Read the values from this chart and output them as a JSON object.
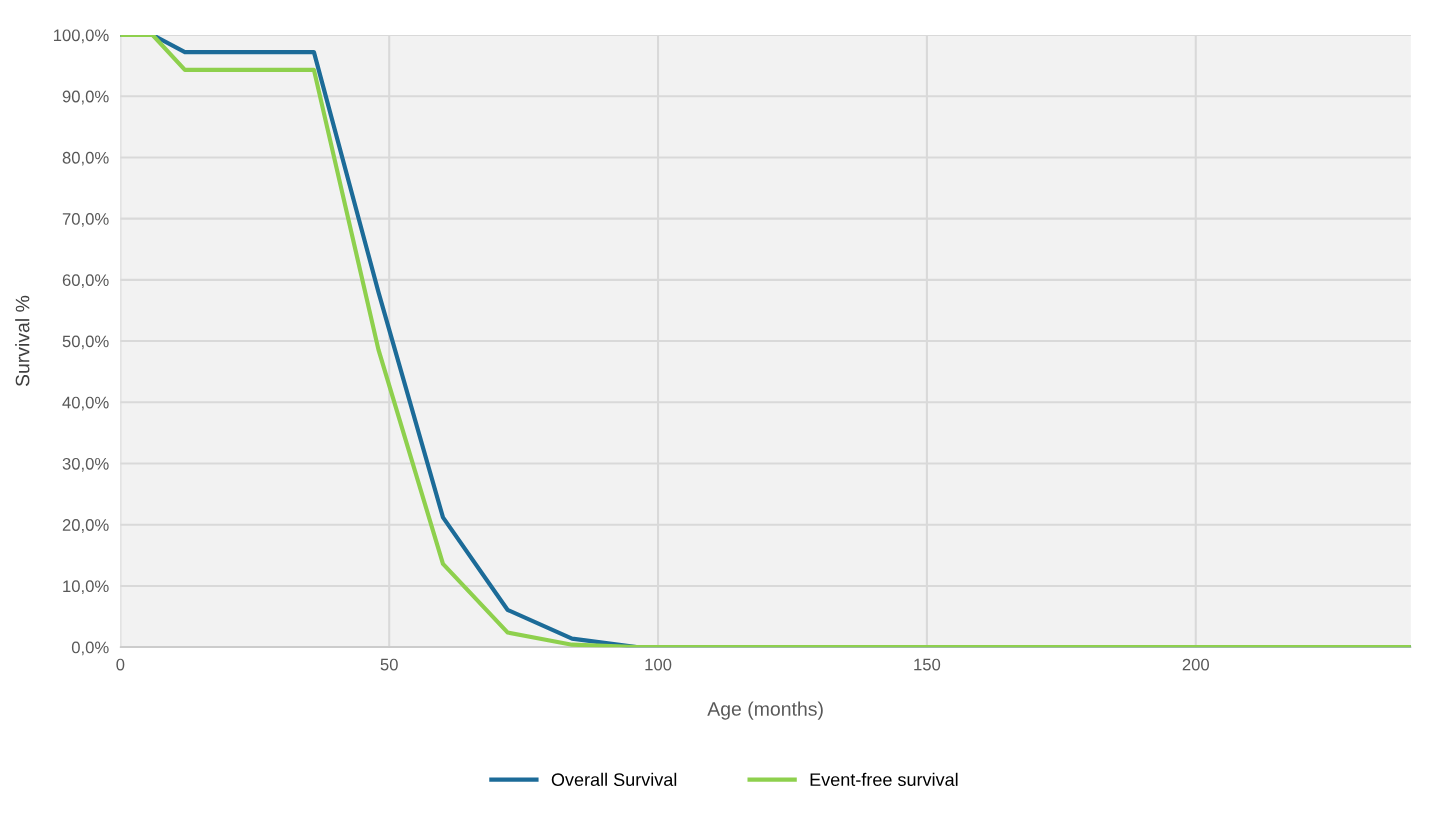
{
  "chart_data": {
    "type": "line",
    "xlabel": "Age (months)",
    "ylabel": "Survival %",
    "series": [
      {
        "name": "Overall Survival",
        "color": "#1c6b98",
        "x": [
          0,
          6,
          12,
          36,
          48,
          60,
          72,
          84,
          96,
          240
        ],
        "values": [
          100,
          100,
          97.2,
          97.2,
          58,
          21.2,
          6.1,
          1.4,
          0,
          0
        ]
      },
      {
        "name": "Event-free survival",
        "color": "#8ed04d",
        "x": [
          0,
          6,
          12,
          36,
          48,
          60,
          72,
          84,
          96,
          240
        ],
        "values": [
          100,
          100,
          94.3,
          94.3,
          48.6,
          13.6,
          2.4,
          0.4,
          0,
          0
        ]
      }
    ],
    "xlim": [
      0,
      240
    ],
    "xticks": [
      0,
      50,
      100,
      150,
      200
    ],
    "ylim": [
      0,
      100
    ],
    "yticks": [
      {
        "value": 0,
        "label": "0,0%"
      },
      {
        "value": 10,
        "label": "10,0%"
      },
      {
        "value": 20,
        "label": "20,0%"
      },
      {
        "value": 30,
        "label": "30,0%"
      },
      {
        "value": 40,
        "label": "40,0%"
      },
      {
        "value": 50,
        "label": "50,0%"
      },
      {
        "value": 60,
        "label": "60,0%"
      },
      {
        "value": 70,
        "label": "70,0%"
      },
      {
        "value": 80,
        "label": "80,0%"
      },
      {
        "value": 90,
        "label": "90,0%"
      },
      {
        "value": 100,
        "label": "100,0%"
      }
    ],
    "grid": true,
    "legend": "bottom",
    "marker": "none",
    "line_style": "solid"
  }
}
